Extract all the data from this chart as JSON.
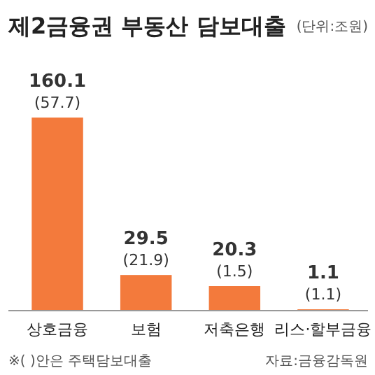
{
  "chart_data": {
    "type": "bar",
    "title": "제2금융권 부동산 담보대출",
    "subtitle": "(단위:조원)",
    "categories": [
      "상호금융",
      "보험",
      "저축은행",
      "리스·할부금융"
    ],
    "values": [
      160.1,
      29.5,
      20.3,
      1.1
    ],
    "color": "#f37a3c",
    "value_labels": [
      "160.1\n(57.7)",
      "29.5\n(21.9)",
      "20.3\n(1.5)",
      "1.1\n(1.1)"
    ],
    "annotations": [
      "※( )안은 주택담보대출",
      "자료:금융감독원"
    ]
  }
}
